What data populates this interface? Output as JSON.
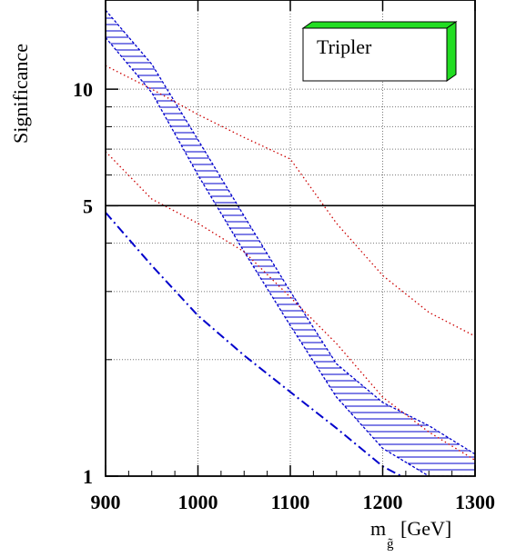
{
  "chart_data": {
    "type": "line",
    "xlabel_main": "m",
    "xlabel_sub": "g̃",
    "xlabel_unit": "[GeV]",
    "ylabel": "Significance",
    "xlim": [
      900,
      1300
    ],
    "ylim": [
      1,
      17
    ],
    "y_scale": "log",
    "x_ticks": [
      900,
      1000,
      1100,
      1200,
      1300
    ],
    "x_tick_labels": [
      "900",
      "1000",
      "1100",
      "1200",
      "1300"
    ],
    "y_major_ticks": [
      1,
      5,
      10
    ],
    "y_major_tick_labels": [
      "1",
      "5",
      "10"
    ],
    "y_minor_ticks": [
      2,
      3,
      4,
      6,
      7,
      8,
      9
    ],
    "grid": true,
    "reference_line_y": 5,
    "legend": {
      "label": "Tripler",
      "position": "top-right",
      "color": "#22dd22"
    },
    "band": {
      "color": "#0000cc",
      "upper": {
        "x": [
          900,
          950,
          1000,
          1050,
          1100,
          1150,
          1200,
          1250,
          1300
        ],
        "y": [
          16.0,
          11.6,
          7.4,
          4.7,
          3.0,
          1.95,
          1.55,
          1.35,
          1.14
        ]
      },
      "lower": {
        "x": [
          900,
          950,
          1000,
          1050,
          1100,
          1150,
          1200,
          1250,
          1300
        ],
        "y": [
          13.6,
          9.8,
          6.0,
          3.8,
          2.45,
          1.6,
          1.18,
          1.0,
          1.0
        ]
      }
    },
    "series": [
      {
        "style": "dotted",
        "color": "#cc0000",
        "x": [
          900,
          950,
          1000,
          1050,
          1100,
          1150,
          1200,
          1250,
          1300
        ],
        "y": [
          11.5,
          10.0,
          8.6,
          7.5,
          6.6,
          4.5,
          3.3,
          2.65,
          2.3
        ]
      },
      {
        "style": "dotted",
        "color": "#cc0000",
        "x": [
          900,
          950,
          1000,
          1050,
          1100,
          1150,
          1200,
          1250,
          1300
        ],
        "y": [
          6.9,
          5.2,
          4.5,
          3.8,
          2.9,
          2.2,
          1.6,
          1.3,
          1.1
        ]
      },
      {
        "style": "dashdot",
        "color": "#0000cc",
        "x": [
          900,
          950,
          1000,
          1050,
          1100,
          1150,
          1200,
          1220
        ],
        "y": [
          4.8,
          3.5,
          2.6,
          2.05,
          1.65,
          1.33,
          1.06,
          1.0
        ]
      }
    ]
  }
}
